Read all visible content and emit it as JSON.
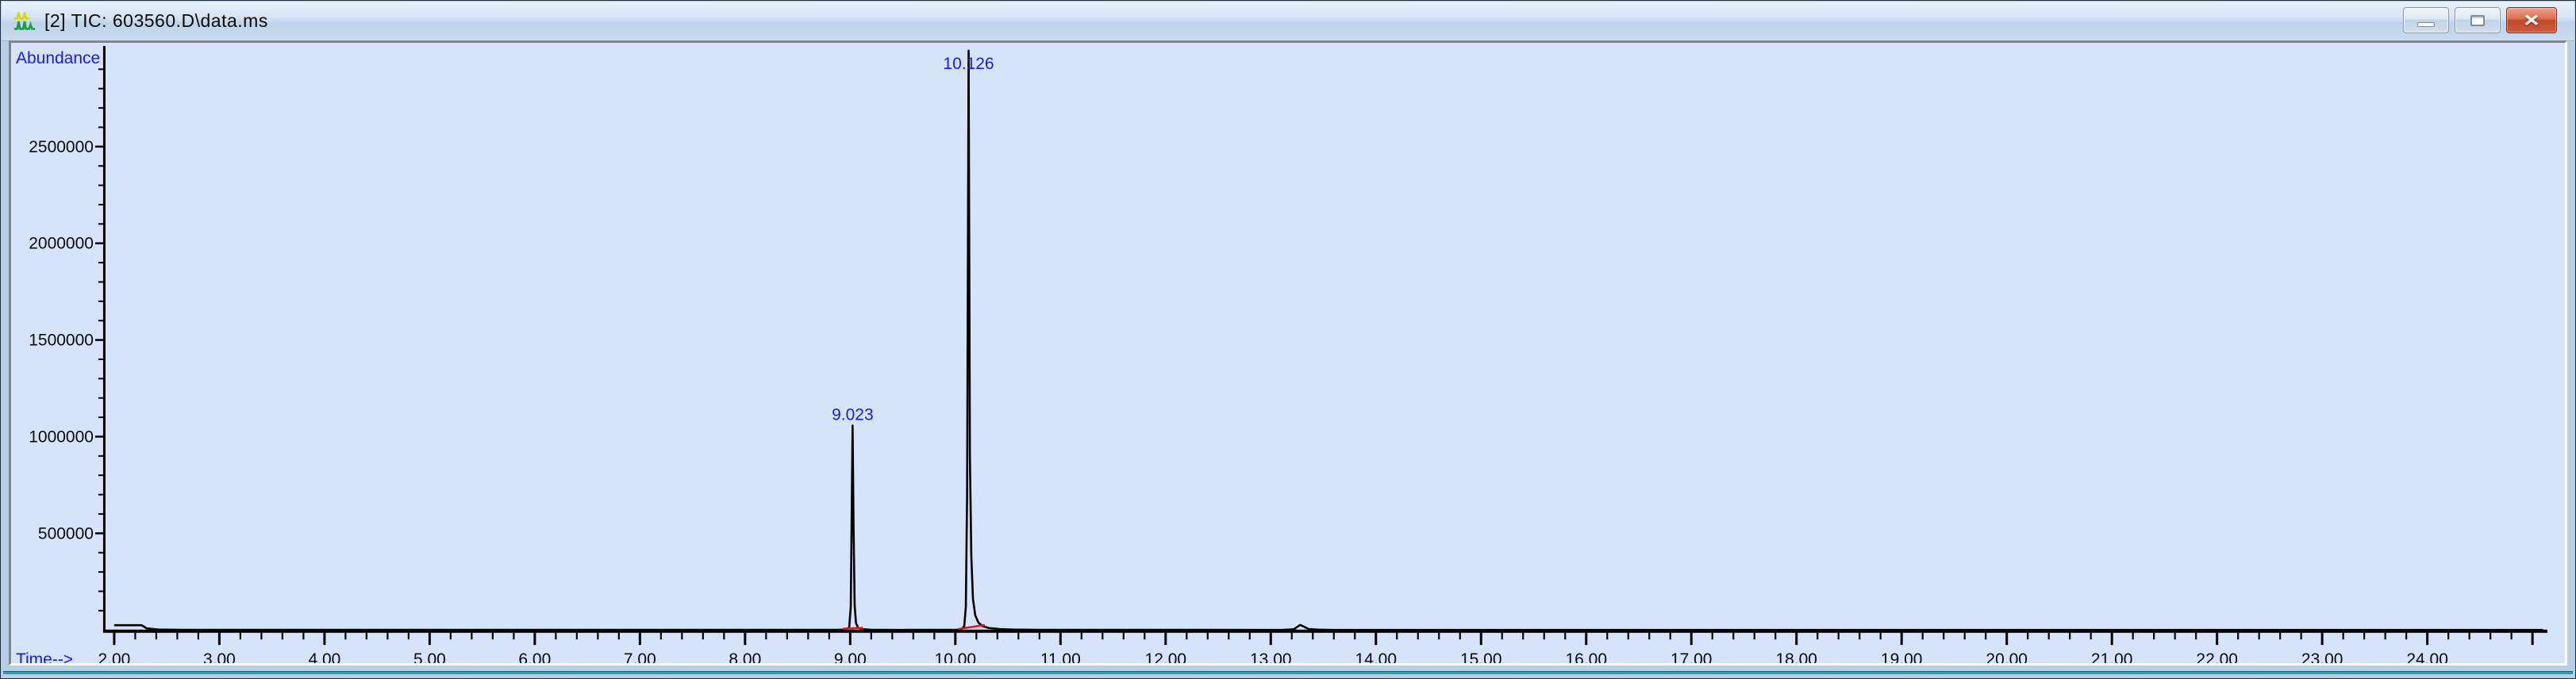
{
  "window": {
    "title": "[2] TIC: 603560.D\\data.ms",
    "icon": "chromatogram-icon",
    "controls": {
      "minimize": "minimize",
      "restore": "restore",
      "close_glyph": "×"
    }
  },
  "chart_data": {
    "type": "line",
    "title": "TIC: 603560.D\\data.ms",
    "ylabel": "Abundance",
    "xlabel": "Time-->",
    "xlim": [
      2.0,
      25.14
    ],
    "ylim": [
      0,
      3010000
    ],
    "x_major_step": 1.0,
    "x_minor_step": 0.2,
    "x_label_max": 24,
    "x_tick_decimals": 2,
    "y_label_values": [
      500000,
      1000000,
      1500000,
      2000000,
      2500000
    ],
    "y_major_step": 500000,
    "y_minor_step": 100000,
    "y_minor_max": 2900000,
    "grid": false,
    "legend": false,
    "peaks": [
      {
        "rt": 9.023,
        "label": "9.023",
        "apex_abundance": 1057000
      },
      {
        "rt": 10.126,
        "label": "10.126",
        "apex_abundance": 2996000
      }
    ],
    "signal": [
      [
        2.0,
        25000
      ],
      [
        2.26,
        25000
      ],
      [
        2.31,
        8000
      ],
      [
        2.42,
        2500
      ],
      [
        2.65,
        800
      ],
      [
        8.88,
        700
      ],
      [
        8.95,
        2500
      ],
      [
        8.99,
        12000
      ],
      [
        9.005,
        120000
      ],
      [
        9.013,
        520000
      ],
      [
        9.023,
        1057000
      ],
      [
        9.032,
        540000
      ],
      [
        9.042,
        130000
      ],
      [
        9.055,
        35000
      ],
      [
        9.075,
        12000
      ],
      [
        9.11,
        4500
      ],
      [
        9.2,
        1200
      ],
      [
        9.5,
        600
      ],
      [
        10.02,
        1200
      ],
      [
        10.06,
        5000
      ],
      [
        10.085,
        20000
      ],
      [
        10.1,
        120000
      ],
      [
        10.112,
        700000
      ],
      [
        10.126,
        2996000
      ],
      [
        10.138,
        900000
      ],
      [
        10.152,
        380000
      ],
      [
        10.168,
        160000
      ],
      [
        10.19,
        75000
      ],
      [
        10.22,
        38000
      ],
      [
        10.26,
        20000
      ],
      [
        10.32,
        10000
      ],
      [
        10.42,
        4800
      ],
      [
        10.55,
        2200
      ],
      [
        10.8,
        900
      ],
      [
        13.1,
        600
      ],
      [
        13.22,
        3500
      ],
      [
        13.28,
        26000
      ],
      [
        13.32,
        16000
      ],
      [
        13.36,
        5000
      ],
      [
        13.45,
        1500
      ],
      [
        13.6,
        600
      ],
      [
        24.9,
        500
      ],
      [
        25.1,
        400
      ]
    ],
    "baseline_segments": [
      {
        "points": [
          [
            8.93,
            6000
          ],
          [
            9.12,
            11000
          ]
        ]
      },
      {
        "points": [
          [
            10.03,
            5000
          ],
          [
            10.28,
            26000
          ]
        ]
      }
    ],
    "colors": {
      "trace": "#000000",
      "baseline": "#ee1111",
      "annotation": "#1a1ae6",
      "axis": "#000000",
      "tick_label": "#0a0a0a",
      "plot_bg": "#d5e3fb"
    }
  }
}
